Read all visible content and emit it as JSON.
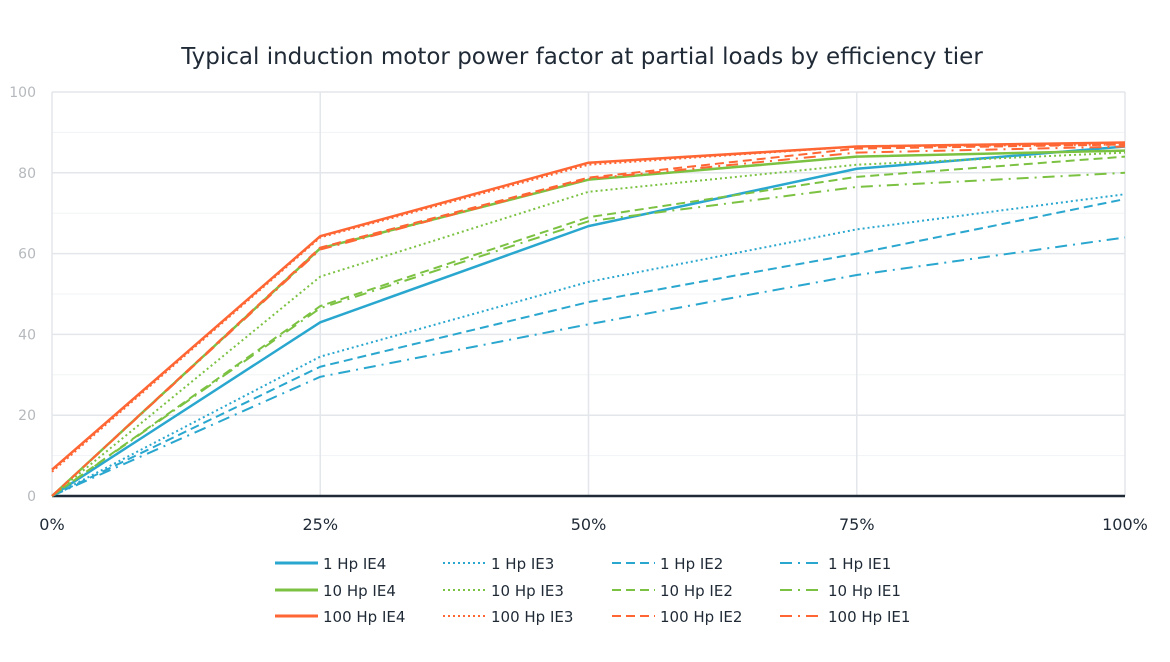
{
  "chart_data": {
    "type": "line",
    "title": "Typical induction motor power factor at partial loads by efficiency tier",
    "xlabel": "",
    "ylabel": "",
    "categories": [
      "0%",
      "25%",
      "50%",
      "75%",
      "100%"
    ],
    "ylim": [
      0,
      100
    ],
    "yticks": [
      "0",
      "20",
      "40",
      "60",
      "80",
      "100"
    ],
    "grid": true,
    "legend_placement": "bottom",
    "colors": {
      "1 Hp": "#2aa7cf",
      "10 Hp": "#7cc242",
      "100 Hp": "#ff6633"
    },
    "series": [
      {
        "name": "1 Hp IE4",
        "color": "#2aa7cf",
        "style": "solid",
        "values": [
          0,
          43,
          66.8,
          81,
          86.5
        ]
      },
      {
        "name": "1 Hp IE3",
        "color": "#2aa7cf",
        "style": "dotted",
        "values": [
          0,
          34.5,
          53,
          66,
          74.7
        ]
      },
      {
        "name": "1 Hp IE2",
        "color": "#2aa7cf",
        "style": "dashed",
        "values": [
          0,
          32,
          48,
          60,
          73.5
        ]
      },
      {
        "name": "1 Hp IE1",
        "color": "#2aa7cf",
        "style": "dashdot",
        "values": [
          0,
          29.5,
          42.5,
          54.7,
          64
        ]
      },
      {
        "name": "10 Hp IE4",
        "color": "#7cc242",
        "style": "solid",
        "values": [
          0,
          61.3,
          78.3,
          84,
          85.5
        ]
      },
      {
        "name": "10 Hp IE3",
        "color": "#7cc242",
        "style": "dotted",
        "values": [
          0,
          54.3,
          75.3,
          82,
          85
        ]
      },
      {
        "name": "10 Hp IE2",
        "color": "#7cc242",
        "style": "dashed",
        "values": [
          0,
          47,
          69,
          79,
          84
        ]
      },
      {
        "name": "10 Hp IE1",
        "color": "#7cc242",
        "style": "dashdot",
        "values": [
          0,
          46.5,
          68,
          76.5,
          80
        ]
      },
      {
        "name": "100 Hp IE4",
        "color": "#ff6633",
        "style": "solid",
        "values": [
          6.5,
          64.3,
          82.5,
          86.5,
          87.5
        ]
      },
      {
        "name": "100 Hp IE3",
        "color": "#ff6633",
        "style": "dotted",
        "values": [
          6,
          64,
          82,
          86.5,
          87
        ]
      },
      {
        "name": "100 Hp IE2",
        "color": "#ff6633",
        "style": "dashed",
        "values": [
          0,
          61.5,
          78.8,
          86,
          87
        ]
      },
      {
        "name": "100 Hp IE1",
        "color": "#ff6633",
        "style": "dashdot",
        "values": [
          0,
          61,
          78.5,
          85,
          86.5
        ]
      }
    ]
  }
}
